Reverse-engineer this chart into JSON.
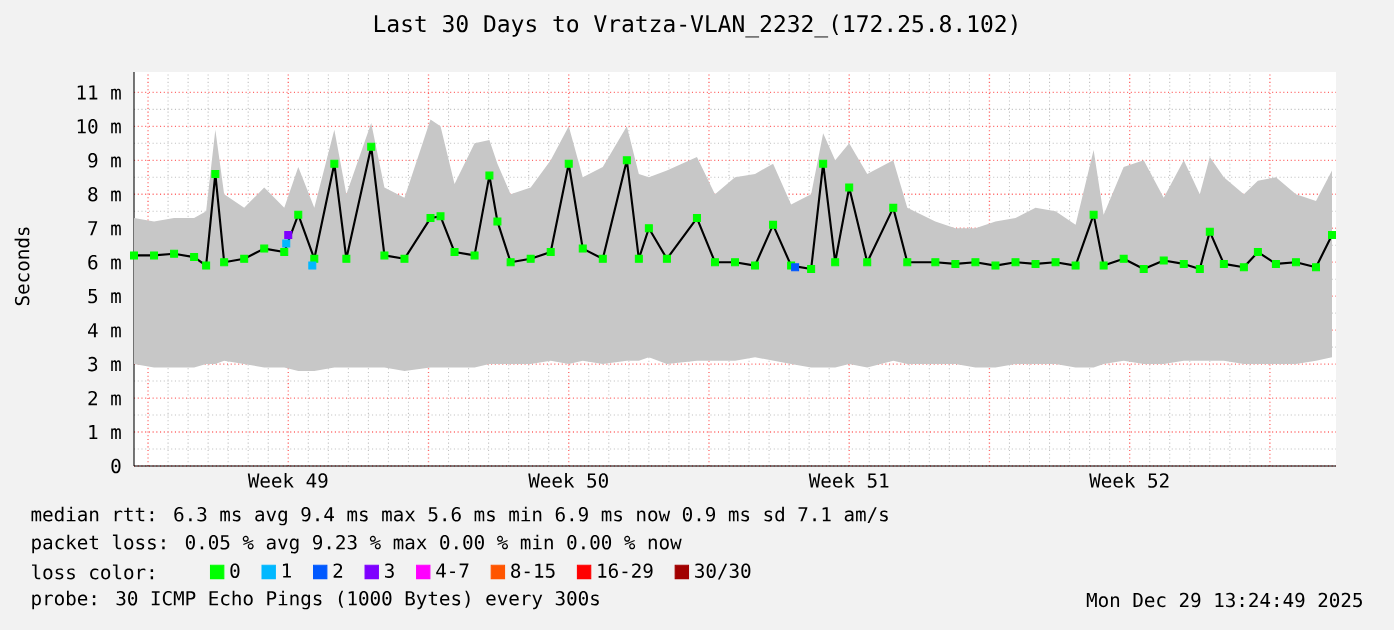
{
  "chart_data": {
    "type": "line",
    "title": "Last 30 Days to Vratza-VLAN_2232_(172.25.8.102)",
    "ylabel": "Seconds",
    "x": [
      "2025-11-29T13:24",
      "2025-11-30T01:24",
      "2025-11-30T13:24",
      "2025-12-01T01:24",
      "2025-12-01T08:36",
      "2025-12-01T14:07",
      "2025-12-01T19:24",
      "2025-12-02T07:24",
      "2025-12-02T19:24",
      "2025-12-03T07:24",
      "2025-12-03T15:48",
      "2025-12-04T01:24",
      "2025-12-04T13:24",
      "2025-12-04T20:36",
      "2025-12-05T11:29",
      "2025-12-05T19:24",
      "2025-12-06T07:24",
      "2025-12-06T23:00",
      "2025-12-07T05:00",
      "2025-12-07T13:24",
      "2025-12-08T01:24",
      "2025-12-08T10:17",
      "2025-12-08T15:05",
      "2025-12-08T23:00",
      "2025-12-09T11:00",
      "2025-12-09T23:00",
      "2025-12-10T09:48",
      "2025-12-10T18:12",
      "2025-12-11T06:12",
      "2025-12-11T20:36",
      "2025-12-12T03:48",
      "2025-12-12T09:48",
      "2025-12-12T20:36",
      "2025-12-13T14:36",
      "2025-12-14T01:24",
      "2025-12-14T13:24",
      "2025-12-15T01:24",
      "2025-12-15T12:12",
      "2025-12-15T23:00",
      "2025-12-16T11:00",
      "2025-12-16T18:12",
      "2025-12-17T01:24",
      "2025-12-17T09:48",
      "2025-12-17T20:36",
      "2025-12-18T12:12",
      "2025-12-18T20:36",
      "2025-12-19T13:24",
      "2025-12-20T01:24",
      "2025-12-20T13:24",
      "2025-12-21T01:24",
      "2025-12-21T13:24",
      "2025-12-22T01:24",
      "2025-12-22T13:24",
      "2025-12-23T01:24",
      "2025-12-23T12:12",
      "2025-12-23T18:12",
      "2025-12-24T06:12",
      "2025-12-24T18:12",
      "2025-12-25T06:12",
      "2025-12-25T18:12",
      "2025-12-26T03:48",
      "2025-12-26T09:48",
      "2025-12-26T18:12",
      "2025-12-27T06:12",
      "2025-12-27T14:36",
      "2025-12-28T01:24",
      "2025-12-28T13:24",
      "2025-12-29T01:24",
      "2025-12-29T11:00"
    ],
    "xlim": [
      "2025-11-29T13:24",
      "2025-12-29T13:24"
    ],
    "xticks": [
      {
        "value": "2025-11-29T21:48",
        "label": null
      },
      {
        "value": "2025-12-03T09:48",
        "label": "Week 49"
      },
      {
        "value": "2025-12-06T21:48",
        "label": null
      },
      {
        "value": "2025-12-10T09:48",
        "label": "Week 50"
      },
      {
        "value": "2025-12-13T21:48",
        "label": null
      },
      {
        "value": "2025-12-17T09:48",
        "label": "Week 51"
      },
      {
        "value": "2025-12-20T21:48",
        "label": null
      },
      {
        "value": "2025-12-24T09:48",
        "label": "Week 52"
      },
      {
        "value": "2025-12-27T21:48",
        "label": null
      }
    ],
    "ylim": [
      0,
      11.6
    ],
    "yticks": [
      0,
      {
        "value": 1,
        "label": "1 m"
      },
      {
        "value": 2,
        "label": "2 m"
      },
      {
        "value": 3,
        "label": "3 m"
      },
      {
        "value": 4,
        "label": "4 m"
      },
      {
        "value": 5,
        "label": "5 m"
      },
      {
        "value": 6,
        "label": "6 m"
      },
      {
        "value": 7,
        "label": "7 m"
      },
      {
        "value": 8,
        "label": "8 m"
      },
      {
        "value": 9,
        "label": "9 m"
      },
      {
        "value": 10,
        "label": "10 m"
      },
      {
        "value": 11,
        "label": "11 m"
      }
    ],
    "grid": true,
    "marker": "square",
    "legend": "bottom",
    "legend_title": "loss color:",
    "series": [
      {
        "name": "0",
        "color": "#00ff00",
        "values": [
          6.2,
          6.2,
          6.25,
          6.15,
          5.9,
          8.6,
          6.0,
          6.1,
          6.4,
          6.3,
          7.4,
          6.1,
          8.9,
          6.1,
          9.4,
          6.2,
          6.1,
          7.3,
          7.35,
          6.3,
          6.2,
          8.55,
          7.2,
          6.0,
          6.1,
          6.3,
          8.9,
          6.4,
          6.1,
          9.0,
          6.1,
          7.0,
          6.1,
          7.3,
          6.0,
          6.0,
          5.9,
          7.1,
          5.9,
          5.8,
          8.9,
          6.0,
          8.2,
          6.0,
          7.6,
          6.0,
          6.0,
          5.95,
          6.0,
          5.9,
          6.0,
          5.95,
          6.0,
          5.9,
          7.4,
          5.9,
          6.1,
          5.8,
          6.05,
          5.95,
          5.8,
          6.9,
          5.95,
          5.85,
          6.3,
          5.95,
          6.0,
          5.85,
          6.8
        ],
        "lower": [
          3.0,
          2.9,
          2.9,
          2.9,
          3.0,
          3.0,
          3.1,
          3.0,
          2.9,
          2.9,
          2.8,
          2.8,
          2.9,
          2.9,
          2.9,
          2.9,
          2.8,
          2.9,
          2.9,
          2.9,
          2.9,
          3.0,
          3.0,
          3.0,
          3.0,
          3.1,
          3.0,
          3.1,
          3.0,
          3.1,
          3.1,
          3.2,
          3.0,
          3.1,
          3.1,
          3.1,
          3.2,
          3.1,
          3.0,
          2.9,
          2.9,
          2.9,
          3.0,
          2.9,
          3.1,
          3.0,
          3.0,
          3.0,
          2.9,
          2.9,
          3.0,
          3.0,
          3.0,
          2.9,
          2.9,
          3.0,
          3.1,
          3.0,
          3.0,
          3.1,
          3.1,
          3.1,
          3.1,
          3.0,
          3.0,
          3.0,
          3.0,
          3.1,
          3.2
        ],
        "upper": [
          7.3,
          7.2,
          7.3,
          7.3,
          7.5,
          9.9,
          8.0,
          7.6,
          8.2,
          7.6,
          8.8,
          7.6,
          9.9,
          8.0,
          10.1,
          8.2,
          7.9,
          10.2,
          10.0,
          8.3,
          9.5,
          9.6,
          8.9,
          8.0,
          8.2,
          9.0,
          10.0,
          8.5,
          8.8,
          10.0,
          8.6,
          8.5,
          8.7,
          9.1,
          8.0,
          8.5,
          8.6,
          8.9,
          7.7,
          8.0,
          9.8,
          9.0,
          9.5,
          8.6,
          9.0,
          7.6,
          7.2,
          7.0,
          7.0,
          7.2,
          7.3,
          7.6,
          7.5,
          7.1,
          9.3,
          7.4,
          8.8,
          9.0,
          7.9,
          9.0,
          8.0,
          9.1,
          8.5,
          8.0,
          8.4,
          8.5,
          8.0,
          7.8,
          8.7
        ]
      },
      {
        "name": "1",
        "type": "scatter",
        "color": "#00b8ff",
        "x": [
          "2025-12-03T08:36",
          "2025-12-04T00:12"
        ],
        "values": [
          6.55,
          5.9
        ]
      },
      {
        "name": "2",
        "type": "scatter",
        "color": "#0059ff",
        "x": [
          "2025-12-16T01:24"
        ],
        "values": [
          5.85
        ]
      },
      {
        "name": "3",
        "type": "scatter",
        "color": "#7e00ff",
        "x": [
          "2025-12-03T09:48"
        ],
        "values": [
          6.8
        ]
      },
      {
        "name": "4-7",
        "type": "scatter",
        "color": "#ff00ff",
        "values": [
          null,
          null,
          null,
          null,
          null,
          null,
          null,
          null,
          null,
          null,
          null,
          null,
          null,
          null,
          null,
          null,
          null,
          null,
          null,
          null,
          null,
          null,
          null,
          null,
          null,
          null,
          null,
          null,
          null,
          null,
          null,
          null,
          null,
          null,
          null,
          null,
          null,
          null,
          null,
          null,
          null,
          null,
          null,
          null,
          null,
          null,
          null,
          null,
          null,
          null,
          null,
          null,
          null,
          null,
          null,
          null,
          null,
          null,
          null,
          null,
          null,
          null,
          null,
          null,
          null,
          null,
          null,
          null,
          null
        ]
      },
      {
        "name": "8-15",
        "type": "scatter",
        "color": "#ff5500",
        "values": [
          null,
          null,
          null,
          null,
          null,
          null,
          null,
          null,
          null,
          null,
          null,
          null,
          null,
          null,
          null,
          null,
          null,
          null,
          null,
          null,
          null,
          null,
          null,
          null,
          null,
          null,
          null,
          null,
          null,
          null,
          null,
          null,
          null,
          null,
          null,
          null,
          null,
          null,
          null,
          null,
          null,
          null,
          null,
          null,
          null,
          null,
          null,
          null,
          null,
          null,
          null,
          null,
          null,
          null,
          null,
          null,
          null,
          null,
          null,
          null,
          null,
          null,
          null,
          null,
          null,
          null,
          null,
          null,
          null
        ]
      },
      {
        "name": "16-29",
        "type": "scatter",
        "color": "#ff0000",
        "values": [
          null,
          null,
          null,
          null,
          null,
          null,
          null,
          null,
          null,
          null,
          null,
          null,
          null,
          null,
          null,
          null,
          null,
          null,
          null,
          null,
          null,
          null,
          null,
          null,
          null,
          null,
          null,
          null,
          null,
          null,
          null,
          null,
          null,
          null,
          null,
          null,
          null,
          null,
          null,
          null,
          null,
          null,
          null,
          null,
          null,
          null,
          null,
          null,
          null,
          null,
          null,
          null,
          null,
          null,
          null,
          null,
          null,
          null,
          null,
          null,
          null,
          null,
          null,
          null,
          null,
          null,
          null,
          null,
          null
        ]
      },
      {
        "name": "30/30",
        "type": "scatter",
        "color": "#a10000",
        "values": [
          null,
          null,
          null,
          null,
          null,
          null,
          null,
          null,
          null,
          null,
          null,
          null,
          null,
          null,
          null,
          null,
          null,
          null,
          null,
          null,
          null,
          null,
          null,
          null,
          null,
          null,
          null,
          null,
          null,
          null,
          null,
          null,
          null,
          null,
          null,
          null,
          null,
          null,
          null,
          null,
          null,
          null,
          null,
          null,
          null,
          null,
          null,
          null,
          null,
          null,
          null,
          null,
          null,
          null,
          null,
          null,
          null,
          null,
          null,
          null,
          null,
          null,
          null,
          null,
          null,
          null,
          null,
          null,
          null
        ]
      }
    ],
    "annotations": [
      "median rtt: 6.3 ms avg 9.4 ms max 5.6 ms min 6.9 ms now 0.9 ms sd 7.1 am/s",
      "packet loss: 0.05 % avg 9.23 % max 0.00 % min 0.00 % now",
      "probe: 30 ICMP Echo Pings (1000 Bytes) every 300s",
      "Mon Dec 29 13:24:49 2025"
    ]
  }
}
